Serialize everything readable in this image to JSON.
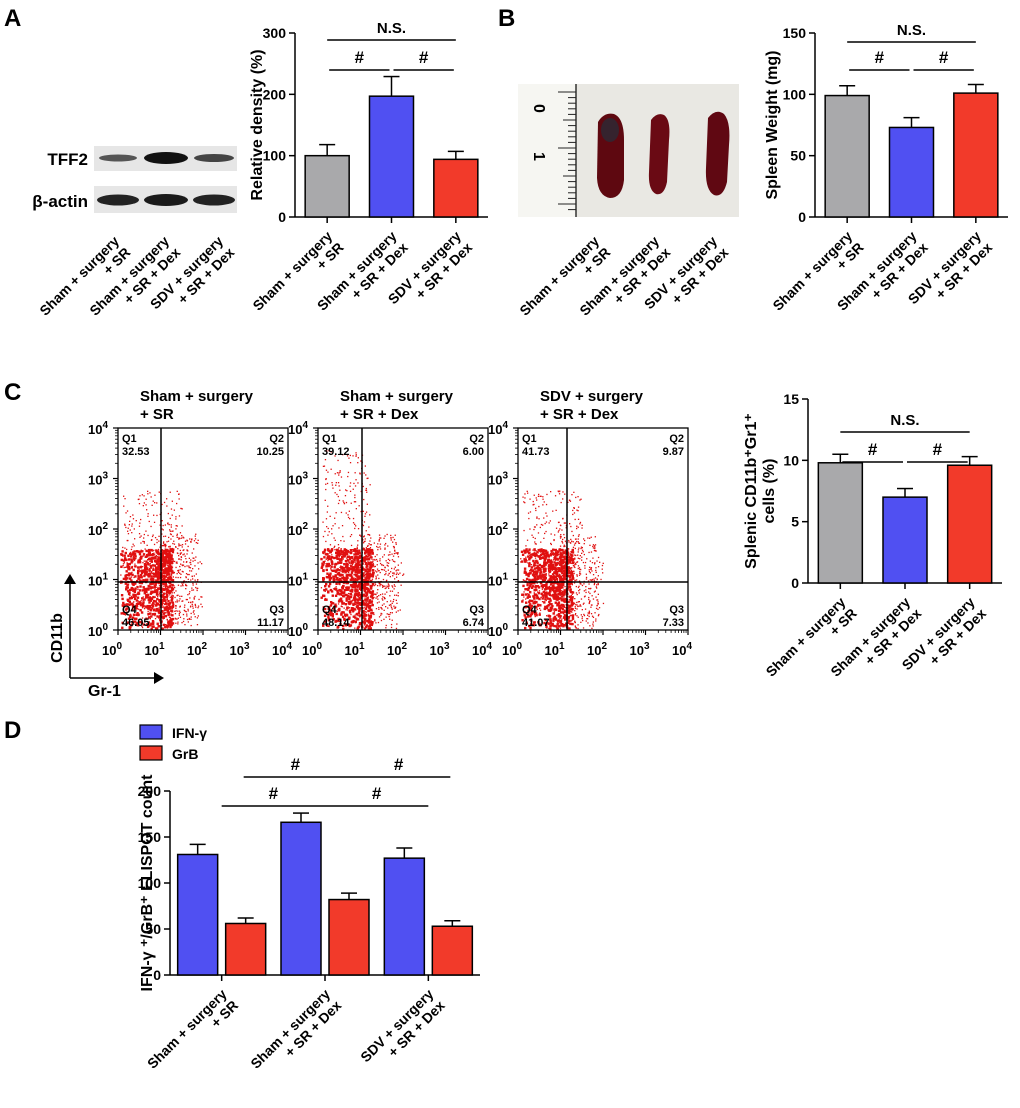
{
  "colors": {
    "gray": "#a9a9ab",
    "blue": "#5050f2",
    "red": "#f23a2a",
    "flow": "#e01010"
  },
  "figure": {
    "panel_a": {
      "label": "A",
      "blot_rows": [
        "TFF2",
        "β-actin"
      ],
      "lane_labels": [
        [
          "Sham + surgery",
          "+ SR"
        ],
        [
          "Sham + surgery",
          "+ SR + Dex"
        ],
        [
          "SDV + surgery",
          "+ SR + Dex"
        ]
      ]
    },
    "panel_b": {
      "label": "B",
      "photo_ruler_labels": [
        "0",
        "1"
      ],
      "lane_labels": [
        [
          "Sham + surgery",
          "+ SR"
        ],
        [
          "Sham + surgery",
          "+ SR + Dex"
        ],
        [
          "SDV + surgery",
          "+ SR + Dex"
        ]
      ]
    },
    "panel_c": {
      "label": "C",
      "y_axis": "CD11b",
      "x_axis": "Gr-1",
      "plots": [
        {
          "title": [
            "Sham + surgery",
            "+ SR"
          ],
          "q1": "Q1",
          "q1v": "32.53",
          "q2": "Q2",
          "q2v": "10.25",
          "q3": "Q3",
          "q3v": "11.17",
          "q4": "Q4",
          "q4v": "46.05"
        },
        {
          "title": [
            "Sham + surgery",
            "+ SR + Dex"
          ],
          "q1": "Q1",
          "q1v": "39.12",
          "q2": "Q2",
          "q2v": "6.00",
          "q3": "Q3",
          "q3v": "6.74",
          "q4": "Q4",
          "q4v": "48.14"
        },
        {
          "title": [
            "SDV + surgery",
            "+ SR + Dex"
          ],
          "q1": "Q1",
          "q1v": "41.73",
          "q2": "Q2",
          "q2v": "9.87",
          "q3": "Q3",
          "q3v": "7.33",
          "q4": "Q4",
          "q4v": "41.07"
        }
      ],
      "decades": [
        [
          "10",
          "0"
        ],
        [
          "10",
          "1"
        ],
        [
          "10",
          "2"
        ],
        [
          "10",
          "3"
        ],
        [
          "10",
          "4"
        ]
      ]
    },
    "panel_d": {
      "label": "D"
    }
  },
  "chart_data": [
    {
      "id": "a",
      "type": "bar",
      "categories": [
        "Sham + surgery + SR",
        "Sham + surgery + SR + Dex",
        "SDV + surgery + SR + Dex"
      ],
      "category_lines": [
        [
          "Sham + surgery",
          "+ SR"
        ],
        [
          "Sham + surgery",
          "+ SR + Dex"
        ],
        [
          "SDV + surgery",
          "+ SR + Dex"
        ]
      ],
      "values": [
        100,
        197,
        94
      ],
      "errors": [
        18,
        32,
        13
      ],
      "ylabel": "Relative density (%)",
      "ylim": [
        0,
        300
      ],
      "yticks": [
        "0",
        "100",
        "200",
        "300"
      ],
      "significance": [
        {
          "from": 0,
          "to": 1,
          "label": "#",
          "level": 0
        },
        {
          "from": 1,
          "to": 2,
          "label": "#",
          "level": 0
        },
        {
          "from": 0,
          "to": 2,
          "label": "N.S.",
          "level": 1
        }
      ]
    },
    {
      "id": "b",
      "type": "bar",
      "categories": [
        "Sham + surgery + SR",
        "Sham + surgery + SR + Dex",
        "SDV + surgery + SR + Dex"
      ],
      "category_lines": [
        [
          "Sham + surgery",
          "+ SR"
        ],
        [
          "Sham + surgery",
          "+ SR + Dex"
        ],
        [
          "SDV + surgery",
          "+ SR + Dex"
        ]
      ],
      "values": [
        99,
        73,
        101
      ],
      "errors": [
        8,
        8,
        7
      ],
      "ylabel": "Spleen Weight (mg)",
      "ylim": [
        0,
        150
      ],
      "yticks": [
        "0",
        "50",
        "100",
        "150"
      ],
      "significance": [
        {
          "from": 0,
          "to": 1,
          "label": "#",
          "level": 0
        },
        {
          "from": 1,
          "to": 2,
          "label": "#",
          "level": 0
        },
        {
          "from": 0,
          "to": 2,
          "label": "N.S.",
          "level": 1
        }
      ]
    },
    {
      "id": "c",
      "type": "bar",
      "categories": [
        "Sham + surgery + SR",
        "Sham + surgery + SR + Dex",
        "SDV + surgery + SR + Dex"
      ],
      "category_lines": [
        [
          "Sham + surgery",
          "+ SR"
        ],
        [
          "Sham + surgery",
          "+ SR + Dex"
        ],
        [
          "SDV + surgery",
          "+ SR + Dex"
        ]
      ],
      "values": [
        9.8,
        7.0,
        9.6
      ],
      "errors": [
        0.7,
        0.7,
        0.7
      ],
      "ylabel_lines": [
        "Splenic CD11b⁺Gr1⁺",
        "cells (%)"
      ],
      "ylim": [
        0,
        15
      ],
      "yticks": [
        "0",
        "5",
        "10",
        "15"
      ],
      "significance": [
        {
          "from": 0,
          "to": 1,
          "label": "#",
          "level": 0
        },
        {
          "from": 1,
          "to": 2,
          "label": "#",
          "level": 0
        },
        {
          "from": 0,
          "to": 2,
          "label": "N.S.",
          "level": 1
        }
      ]
    },
    {
      "id": "d",
      "type": "bar",
      "categories": [
        "Sham + surgery + SR",
        "Sham + surgery + SR + Dex",
        "SDV + surgery + SR + Dex"
      ],
      "category_lines": [
        [
          "Sham + surgery",
          "+ SR"
        ],
        [
          "Sham + surgery",
          "+ SR + Dex"
        ],
        [
          "SDV + surgery",
          "+ SR + Dex"
        ]
      ],
      "series": [
        {
          "name": "IFN-γ",
          "values": [
            131,
            166,
            127
          ],
          "errors": [
            11,
            10,
            11
          ]
        },
        {
          "name": "GrB",
          "values": [
            56,
            82,
            53
          ],
          "errors": [
            6,
            7,
            6
          ]
        }
      ],
      "ylabel": "IFN-γ ⁺/GrB⁺ ELISPOT count",
      "ylim": [
        0,
        200
      ],
      "yticks": [
        "0",
        "50",
        "100",
        "150",
        "200"
      ],
      "significance": [
        {
          "from": 0,
          "to": 1,
          "label": "#",
          "level": 0
        },
        {
          "from": 1,
          "to": 2,
          "label": "#",
          "level": 0
        },
        {
          "from": 0,
          "to": 1,
          "label": "#",
          "level": 1
        },
        {
          "from": 1,
          "to": 2,
          "label": "#",
          "level": 1
        }
      ]
    }
  ]
}
